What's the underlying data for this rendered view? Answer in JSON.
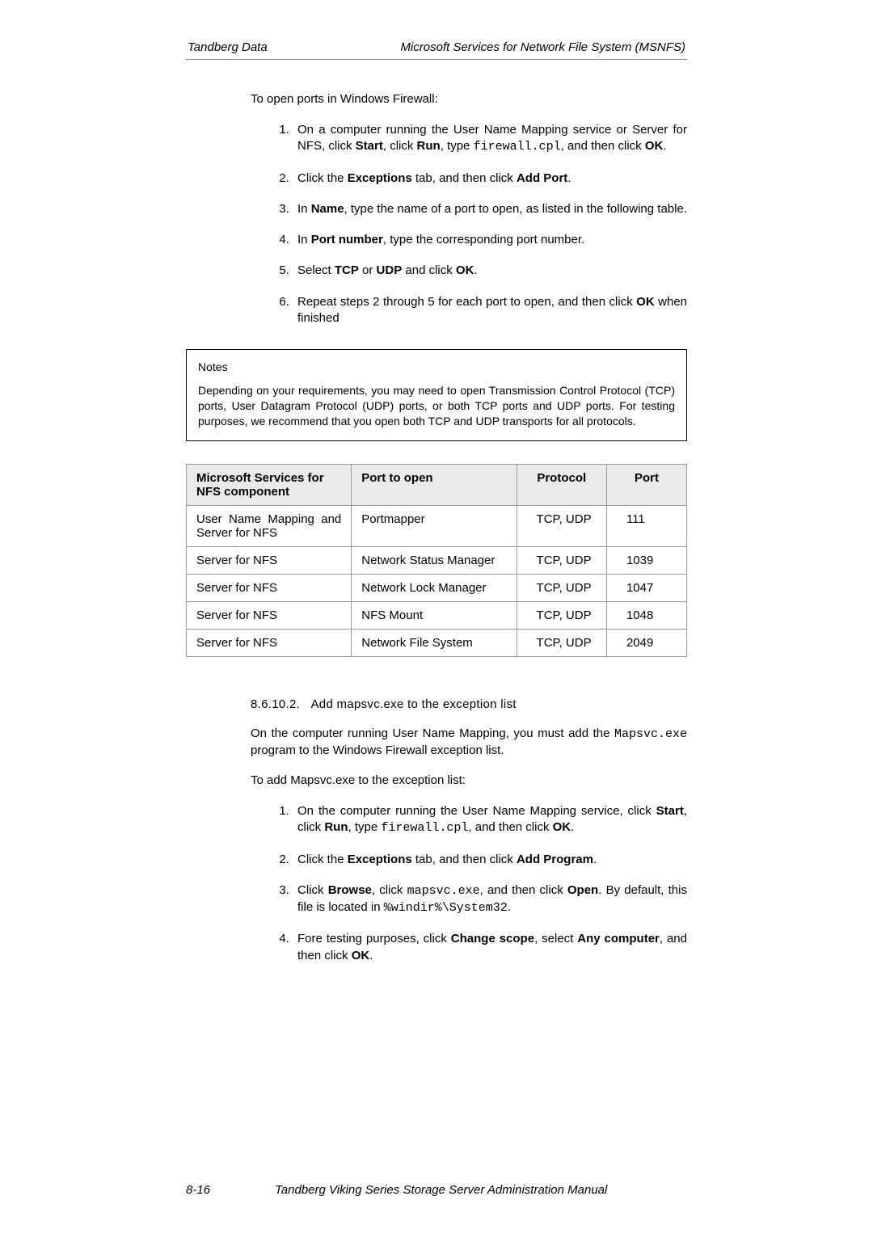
{
  "header": {
    "left": "Tandberg Data",
    "right": "Microsoft Services for Network File System (MSNFS)"
  },
  "section1": {
    "intro": "To open ports in Windows Firewall:",
    "steps": {
      "s1": {
        "pre": "On a computer running the User Name Mapping service or Server for NFS, click ",
        "b1": "Start",
        "t1": ", click ",
        "b2": "Run",
        "t2": ", type ",
        "code": "firewall.cpl",
        "t3": ", and then click ",
        "b3": "OK",
        "t4": "."
      },
      "s2": {
        "pre": "Click the ",
        "b1": "Exceptions",
        "t1": " tab, and then click ",
        "b2": "Add Port",
        "t2": "."
      },
      "s3": {
        "pre": "In ",
        "b1": "Name",
        "t1": ", type the name of a port to open, as listed in the following table."
      },
      "s4": {
        "pre": "In ",
        "b1": "Port number",
        "t1": ", type the corresponding port number."
      },
      "s5": {
        "pre": "Select ",
        "b1": "TCP",
        "t1": " or ",
        "b2": "UDP",
        "t2": " and click ",
        "b3": "OK",
        "t3": "."
      },
      "s6": {
        "pre": "Repeat steps 2 through 5 for each port to open, and then click ",
        "b1": "OK",
        "t1": " when finished"
      }
    }
  },
  "notes": {
    "title": "Notes",
    "body": "Depending on your requirements, you may need to open Transmission Control Protocol (TCP) ports, User Datagram Protocol (UDP) ports, or both TCP ports and UDP ports.  For testing purposes, we recommend that you open both TCP and UDP transports for all protocols."
  },
  "table": {
    "headers": {
      "c1": "Microsoft Services for NFS component",
      "c2": "Port to open",
      "c3": "Protocol",
      "c4": "Port"
    },
    "rows": [
      {
        "c1": "User Name Mapping and Server for NFS",
        "c2": "Portmapper",
        "c3": "TCP, UDP",
        "c4": "111",
        "justify": true
      },
      {
        "c1": "Server for NFS",
        "c2": "Network Status Manager",
        "c3": "TCP, UDP",
        "c4": "1039"
      },
      {
        "c1": "Server for NFS",
        "c2": "Network Lock Manager",
        "c3": "TCP, UDP",
        "c4": "1047"
      },
      {
        "c1": "Server for NFS",
        "c2": "NFS Mount",
        "c3": "TCP, UDP",
        "c4": "1048"
      },
      {
        "c1": "Server for NFS",
        "c2": "Network File System",
        "c3": "TCP, UDP",
        "c4": "2049"
      }
    ]
  },
  "section2": {
    "heading_num": "8.6.10.2.",
    "heading_txt": "Add mapsvc.exe to the exception list",
    "para1": {
      "pre": "On the computer running User Name Mapping, you must add the ",
      "code": "Mapsvc.exe",
      "post": " program to the Windows Firewall exception list."
    },
    "intro": "To add Mapsvc.exe to the exception list:",
    "steps": {
      "s1": {
        "pre": "On the computer running the User Name Mapping service, click ",
        "b1": "Start",
        "t1": ", click ",
        "b2": "Run",
        "t2": ", type ",
        "code": "firewall.cpl",
        "t3": ", and then click ",
        "b3": "OK",
        "t4": "."
      },
      "s2": {
        "pre": "Click the ",
        "b1": "Exceptions",
        "t1": " tab, and then click ",
        "b2": "Add Program",
        "t2": "."
      },
      "s3": {
        "pre": "Click ",
        "b1": "Browse",
        "t1": ", click ",
        "code1": "mapsvc.exe",
        "t2": ", and then click ",
        "b2": "Open",
        "t3": ". By default, this file is located in ",
        "code2": "%windir%\\System32",
        "t4": "."
      },
      "s4": {
        "pre": "Fore testing purposes, click ",
        "b1": "Change scope",
        "t1": ", select ",
        "b2": "Any computer",
        "t2": ", and then click ",
        "b3": "OK",
        "t3": "."
      }
    }
  },
  "footer": {
    "page": "8-16",
    "text": "Tandberg Viking Series Storage Server Administration Manual"
  }
}
